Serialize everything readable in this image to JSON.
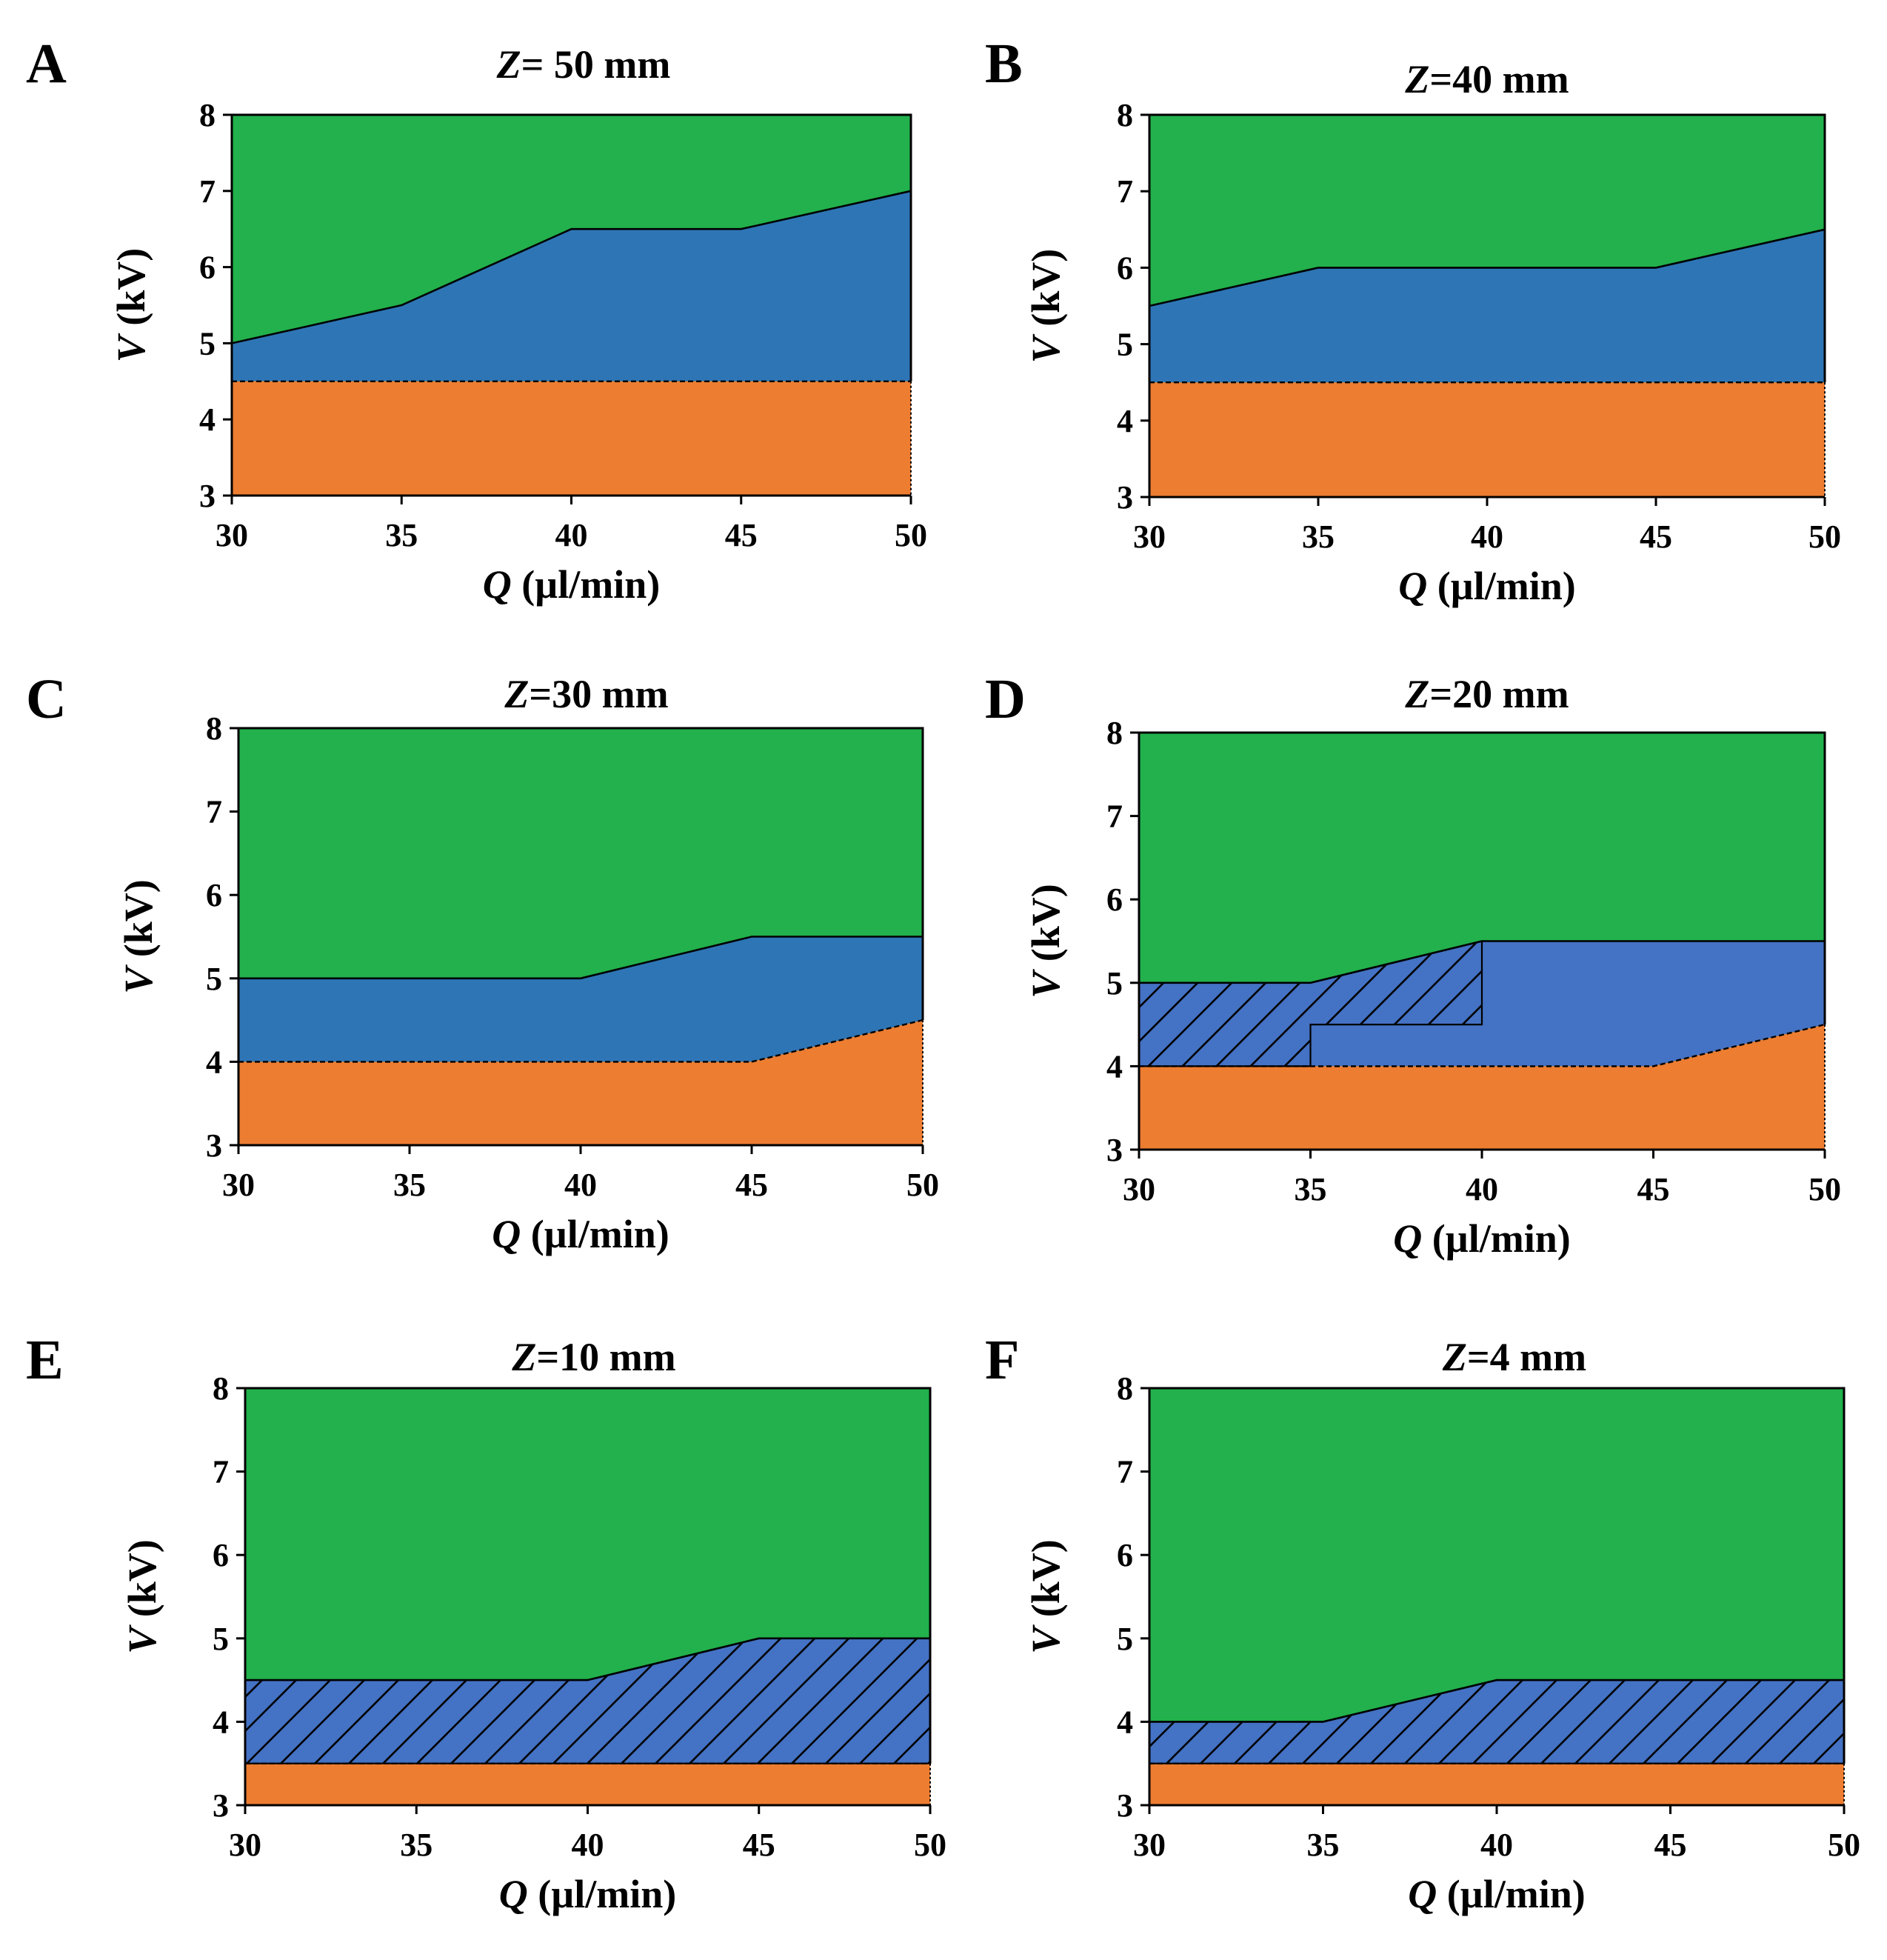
{
  "figure": {
    "colors": {
      "green": "#22b14c",
      "blue": "#2e75b6",
      "blue_light": "#4472c4",
      "orange": "#ed7d31",
      "line": "#000000"
    },
    "panels": [
      {
        "letter": "A",
        "chart_data": {
          "type": "area",
          "title_var": "Z",
          "title_rest": "= 50 mm",
          "xlabel_var": "Q",
          "xlabel_rest": " (µl/min)",
          "ylabel_var": "V",
          "ylabel_rest": " (kV)",
          "x": [
            30,
            35,
            40,
            45,
            50
          ],
          "xlim": [
            30,
            50
          ],
          "ylim": [
            3,
            8
          ],
          "xticks": [
            "30",
            "35",
            "40",
            "45",
            "50"
          ],
          "yticks": [
            "3",
            "4",
            "5",
            "6",
            "7",
            "8"
          ],
          "series": [
            {
              "name": "upper boundary",
              "values": [
                5,
                5.5,
                6.5,
                6.5,
                7
              ]
            },
            {
              "name": "lower boundary",
              "values": [
                4.5,
                4.5,
                4.5,
                4.5,
                4.5
              ]
            }
          ],
          "hatched": []
        }
      },
      {
        "letter": "B",
        "chart_data": {
          "type": "area",
          "title_var": "Z",
          "title_rest": "=40 mm",
          "xlabel_var": "Q",
          "xlabel_rest": " (µl/min)",
          "ylabel_var": "V",
          "ylabel_rest": " (kV)",
          "x": [
            30,
            35,
            40,
            45,
            50
          ],
          "xlim": [
            30,
            50
          ],
          "ylim": [
            3,
            8
          ],
          "xticks": [
            "30",
            "35",
            "40",
            "45",
            "50"
          ],
          "yticks": [
            "3",
            "4",
            "5",
            "6",
            "7",
            "8"
          ],
          "series": [
            {
              "name": "upper boundary",
              "values": [
                5.5,
                6,
                6,
                6,
                6.5
              ]
            },
            {
              "name": "lower boundary",
              "values": [
                4.5,
                4.5,
                4.5,
                4.5,
                4.5
              ]
            }
          ],
          "hatched": []
        }
      },
      {
        "letter": "C",
        "chart_data": {
          "type": "area",
          "title_var": "Z",
          "title_rest": "=30 mm",
          "xlabel_var": "Q",
          "xlabel_rest": " (µl/min)",
          "ylabel_var": "V",
          "ylabel_rest": " (kV)",
          "x": [
            30,
            35,
            40,
            45,
            50
          ],
          "xlim": [
            30,
            50
          ],
          "ylim": [
            3,
            8
          ],
          "xticks": [
            "30",
            "35",
            "40",
            "45",
            "50"
          ],
          "yticks": [
            "3",
            "4",
            "5",
            "6",
            "7",
            "8"
          ],
          "series": [
            {
              "name": "upper boundary",
              "values": [
                5,
                5,
                5,
                5.5,
                5.5
              ]
            },
            {
              "name": "lower boundary",
              "values": [
                4,
                4,
                4,
                4,
                4.5
              ]
            }
          ],
          "hatched": []
        }
      },
      {
        "letter": "D",
        "chart_data": {
          "type": "area",
          "title_var": "Z",
          "title_rest": "=20 mm",
          "xlabel_var": "Q",
          "xlabel_rest": " (µl/min)",
          "ylabel_var": "V",
          "ylabel_rest": " (kV)",
          "x": [
            30,
            35,
            40,
            45,
            50
          ],
          "xlim": [
            30,
            50
          ],
          "ylim": [
            3,
            8
          ],
          "xticks": [
            "30",
            "35",
            "40",
            "45",
            "50"
          ],
          "yticks": [
            "3",
            "4",
            "5",
            "6",
            "7",
            "8"
          ],
          "series": [
            {
              "name": "upper boundary",
              "values": [
                5,
                5,
                5.5,
                5.5,
                5.5
              ]
            },
            {
              "name": "lower boundary",
              "values": [
                4,
                4,
                4,
                4,
                4.5
              ]
            }
          ],
          "hatched": [
            {
              "polygon": [
                [
                  30,
                  4
                ],
                [
                  30,
                  5
                ],
                [
                  35,
                  5
                ],
                [
                  40,
                  5.5
                ],
                [
                  40,
                  4.5
                ],
                [
                  35,
                  4.5
                ],
                [
                  35,
                  4
                ]
              ]
            }
          ]
        }
      },
      {
        "letter": "E",
        "chart_data": {
          "type": "area",
          "title_var": "Z",
          "title_rest": "=10 mm",
          "xlabel_var": "Q",
          "xlabel_rest": " (µl/min)",
          "ylabel_var": "V",
          "ylabel_rest": " (kV)",
          "x": [
            30,
            35,
            40,
            45,
            50
          ],
          "xlim": [
            30,
            50
          ],
          "ylim": [
            3,
            8
          ],
          "xticks": [
            "30",
            "35",
            "40",
            "45",
            "50"
          ],
          "yticks": [
            "3",
            "4",
            "5",
            "6",
            "7",
            "8"
          ],
          "series": [
            {
              "name": "upper boundary",
              "values": [
                4.5,
                4.5,
                4.5,
                5,
                5
              ]
            },
            {
              "name": "lower boundary",
              "values": [
                3.5,
                3.5,
                3.5,
                3.5,
                3.5
              ]
            }
          ],
          "hatched": [
            {
              "polygon": [
                [
                  30,
                  3.5
                ],
                [
                  30,
                  4.5
                ],
                [
                  35,
                  4.5
                ],
                [
                  40,
                  4.5
                ],
                [
                  45,
                  5
                ],
                [
                  50,
                  5
                ],
                [
                  50,
                  3.5
                ]
              ]
            }
          ]
        }
      },
      {
        "letter": "F",
        "chart_data": {
          "type": "area",
          "title_var": "Z",
          "title_rest": "=4 mm",
          "xlabel_var": "Q",
          "xlabel_rest": " (µl/min)",
          "ylabel_var": "V",
          "ylabel_rest": " (kV)",
          "x": [
            30,
            35,
            40,
            45,
            50
          ],
          "xlim": [
            30,
            50
          ],
          "ylim": [
            3,
            8
          ],
          "xticks": [
            "30",
            "35",
            "40",
            "45",
            "50"
          ],
          "yticks": [
            "3",
            "4",
            "5",
            "6",
            "7",
            "8"
          ],
          "series": [
            {
              "name": "upper boundary",
              "values": [
                4,
                4,
                4.5,
                4.5,
                4.5
              ]
            },
            {
              "name": "lower boundary",
              "values": [
                3.5,
                3.5,
                3.5,
                3.5,
                3.5
              ]
            }
          ],
          "hatched": [
            {
              "polygon": [
                [
                  30,
                  3.5
                ],
                [
                  30,
                  4
                ],
                [
                  35,
                  4
                ],
                [
                  40,
                  4.5
                ],
                [
                  45,
                  4.5
                ],
                [
                  50,
                  4.5
                ],
                [
                  50,
                  3.5
                ]
              ]
            }
          ]
        }
      }
    ]
  }
}
